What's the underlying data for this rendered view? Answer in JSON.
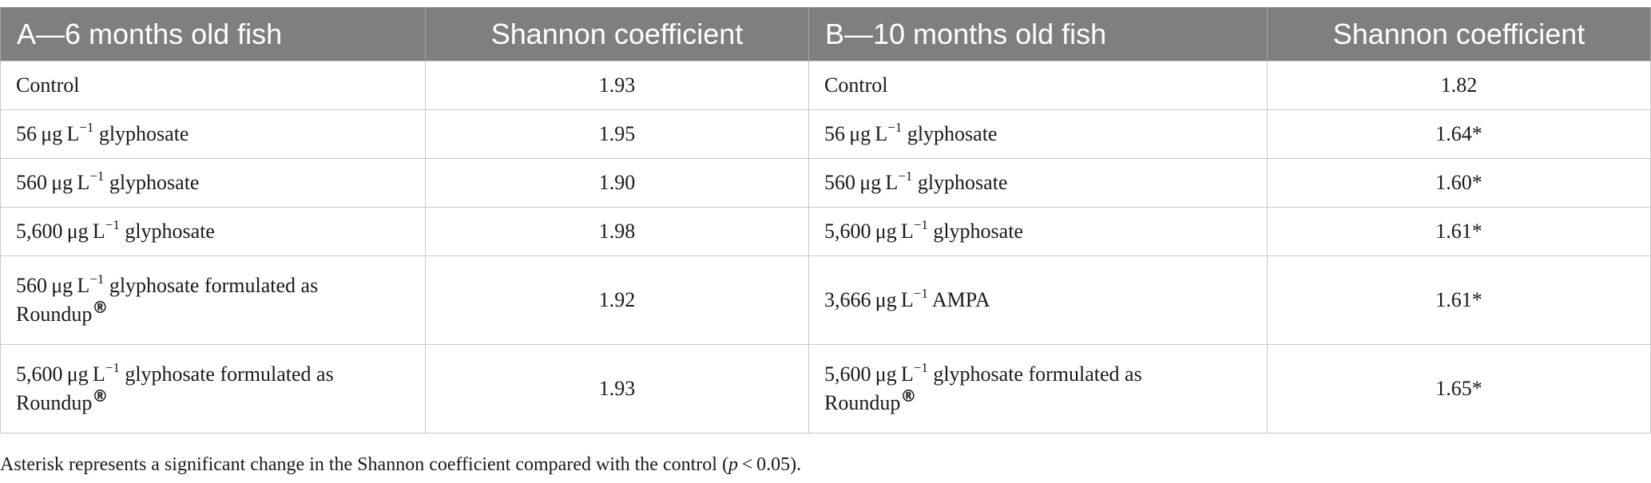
{
  "table": {
    "headers": [
      "A—6 months old fish",
      "Shannon coefficient",
      "B—10 months old fish",
      "Shannon coefficient"
    ],
    "rows": [
      {
        "a_label": [
          "Control"
        ],
        "a_value": "1.93",
        "b_label": [
          "Control"
        ],
        "b_value": "1.82"
      },
      {
        "a_label": [
          "56 μg L",
          "−1",
          " glyphosate"
        ],
        "a_value": "1.95",
        "b_label": [
          "56 μg L",
          "−1",
          " glyphosate"
        ],
        "b_value": "1.64*"
      },
      {
        "a_label": [
          "560 μg L",
          "−1",
          " glyphosate"
        ],
        "a_value": "1.90",
        "b_label": [
          "560 μg L",
          "−1",
          " glyphosate"
        ],
        "b_value": "1.60*"
      },
      {
        "a_label": [
          "5,600 μg L",
          "−1",
          " glyphosate"
        ],
        "a_value": "1.98",
        "b_label": [
          "5,600 μg L",
          "−1",
          " glyphosate"
        ],
        "b_value": "1.61*"
      },
      {
        "a_label": [
          "560 μg L",
          "−1",
          " glyphosate formulated as",
          "Roundup",
          "®"
        ],
        "a_value": "1.92",
        "b_label": [
          "3,666 μg L",
          "−1",
          " AMPA"
        ],
        "b_value": "1.61*"
      },
      {
        "a_label": [
          "5,600 μg L",
          "−1",
          " glyphosate formulated as",
          "Roundup",
          "®"
        ],
        "a_value": "1.93",
        "b_label": [
          "5,600 μg L",
          "−1",
          " glyphosate formulated as",
          "Roundup",
          "®"
        ],
        "b_value": "1.65*"
      }
    ]
  },
  "footnote": {
    "text_before": "Asterisk represents a significant change in the Shannon coefficient compared with the control (",
    "p_symbol": "p",
    "text_after": " < 0.05)."
  }
}
